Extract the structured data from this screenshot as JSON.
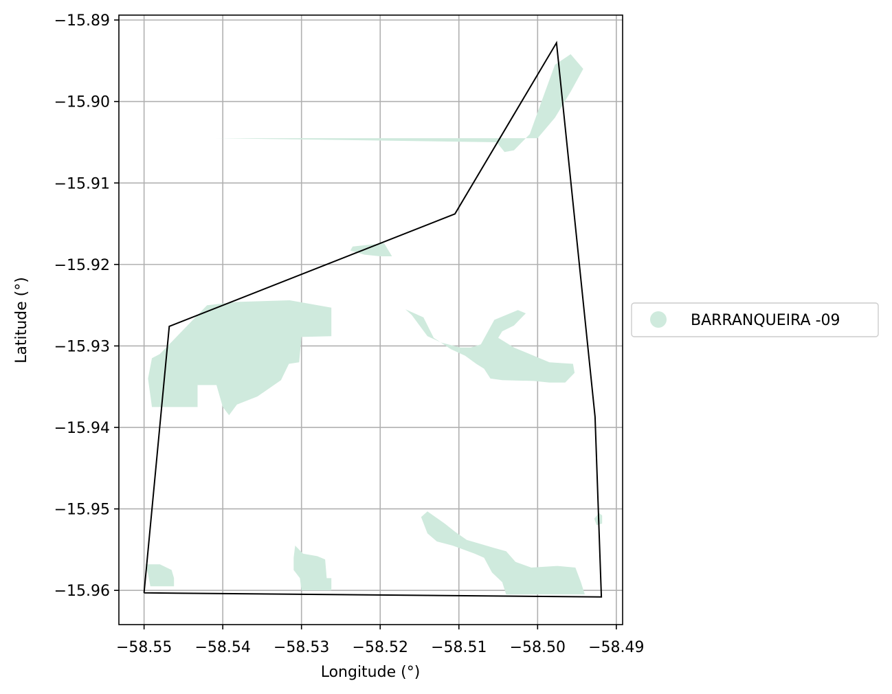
{
  "chart_data": {
    "type": "map",
    "xlabel": "Longitude (°)",
    "ylabel": "Latitude (°)",
    "xlim": [
      -58.5532,
      -58.4892
    ],
    "ylim": [
      -15.9642,
      -15.8894
    ],
    "xticks": [
      -58.55,
      -58.54,
      -58.53,
      -58.52,
      -58.51,
      -58.5,
      -58.49
    ],
    "xtick_labels": [
      "−58.55",
      "−58.54",
      "−58.53",
      "−58.52",
      "−58.51",
      "−58.50",
      "−58.49"
    ],
    "yticks": [
      -15.89,
      -15.9,
      -15.91,
      -15.92,
      -15.93,
      -15.94,
      -15.95,
      -15.96
    ],
    "ytick_labels": [
      "−15.89",
      "−15.90",
      "−15.91",
      "−15.92",
      "−15.93",
      "−15.94",
      "−15.95",
      "−15.96"
    ],
    "grid": true,
    "legend": {
      "placement": "right",
      "entries": [
        {
          "label": "BARRANQUEIRA -09",
          "color": "#cfeadd"
        }
      ]
    },
    "fill_color": "#cfeadd",
    "boundary_color": "#000000",
    "boundary": [
      [
        -58.55,
        -15.9603
      ],
      [
        -58.5468,
        -15.9276
      ],
      [
        -58.5105,
        -15.9138
      ],
      [
        -58.4976,
        -15.8928
      ],
      [
        -58.4927,
        -15.9387
      ],
      [
        -58.4919,
        -15.9608
      ],
      [
        -58.55,
        -15.9603
      ]
    ],
    "patches": [
      [
        [
          -58.548,
          -15.931
        ],
        [
          -58.542,
          -15.925
        ],
        [
          -58.5382,
          -15.9246
        ],
        [
          -58.5315,
          -15.9244
        ],
        [
          -58.5262,
          -15.9253
        ],
        [
          -58.5262,
          -15.9288
        ],
        [
          -58.53,
          -15.9289
        ],
        [
          -58.5303,
          -15.932
        ],
        [
          -58.5316,
          -15.9322
        ],
        [
          -58.5326,
          -15.9342
        ],
        [
          -58.5356,
          -15.9362
        ],
        [
          -58.5382,
          -15.9372
        ],
        [
          -58.5392,
          -15.9385
        ],
        [
          -58.54,
          -15.9375
        ],
        [
          -58.5408,
          -15.9348
        ],
        [
          -58.5432,
          -15.9348
        ],
        [
          -58.5432,
          -15.9375
        ],
        [
          -58.549,
          -15.9375
        ],
        [
          -58.5495,
          -15.934
        ],
        [
          -58.549,
          -15.9315
        ]
      ],
      [
        [
          -58.541,
          -15.9045
        ],
        [
          -58.5,
          -15.9045
        ],
        [
          -58.4978,
          -15.902
        ],
        [
          -58.4958,
          -15.8988
        ],
        [
          -58.4942,
          -15.896
        ],
        [
          -58.4958,
          -15.8942
        ],
        [
          -58.4978,
          -15.8955
        ],
        [
          -58.4995,
          -15.9
        ],
        [
          -58.501,
          -15.904
        ],
        [
          -58.503,
          -15.906
        ],
        [
          -58.5042,
          -15.9062
        ],
        [
          -58.5052,
          -15.905
        ]
      ],
      [
        [
          -58.5235,
          -15.9178
        ],
        [
          -58.5195,
          -15.9174
        ],
        [
          -58.519,
          -15.9182
        ],
        [
          -58.5185,
          -15.919
        ],
        [
          -58.52,
          -15.919
        ],
        [
          -58.522,
          -15.9188
        ],
        [
          -58.5238,
          -15.9183
        ]
      ],
      [
        [
          -58.5168,
          -15.9255
        ],
        [
          -58.5145,
          -15.9265
        ],
        [
          -58.5132,
          -15.929
        ],
        [
          -58.511,
          -15.9304
        ],
        [
          -58.5092,
          -15.9312
        ],
        [
          -58.5078,
          -15.9322
        ],
        [
          -58.5068,
          -15.9328
        ],
        [
          -58.506,
          -15.934
        ],
        [
          -58.5045,
          -15.9342
        ],
        [
          -58.5005,
          -15.9343
        ],
        [
          -58.4985,
          -15.9345
        ],
        [
          -58.4965,
          -15.9345
        ],
        [
          -58.4953,
          -15.9333
        ],
        [
          -58.4955,
          -15.9322
        ],
        [
          -58.4985,
          -15.932
        ],
        [
          -58.5015,
          -15.9308
        ],
        [
          -58.503,
          -15.9302
        ],
        [
          -58.505,
          -15.929
        ],
        [
          -58.5045,
          -15.9282
        ],
        [
          -58.503,
          -15.9275
        ],
        [
          -58.5015,
          -15.926
        ],
        [
          -58.5025,
          -15.9256
        ],
        [
          -58.504,
          -15.9262
        ],
        [
          -58.5055,
          -15.9268
        ],
        [
          -58.5072,
          -15.9298
        ],
        [
          -58.5085,
          -15.9302
        ],
        [
          -58.5098,
          -15.9302
        ],
        [
          -58.5122,
          -15.9296
        ],
        [
          -58.514,
          -15.9288
        ],
        [
          -58.515,
          -15.9275
        ],
        [
          -58.516,
          -15.9262
        ]
      ],
      [
        [
          -58.514,
          -15.9503
        ],
        [
          -58.5118,
          -15.9518
        ],
        [
          -58.5105,
          -15.9528
        ],
        [
          -58.509,
          -15.9538
        ],
        [
          -58.5055,
          -15.9548
        ],
        [
          -58.504,
          -15.9552
        ],
        [
          -58.5028,
          -15.9565
        ],
        [
          -58.5008,
          -15.9572
        ],
        [
          -58.4975,
          -15.957
        ],
        [
          -58.4952,
          -15.9572
        ],
        [
          -58.4945,
          -15.959
        ],
        [
          -58.494,
          -15.9605
        ],
        [
          -58.504,
          -15.9605
        ],
        [
          -58.5045,
          -15.959
        ],
        [
          -58.5058,
          -15.9578
        ],
        [
          -58.5068,
          -15.956
        ],
        [
          -58.508,
          -15.9555
        ],
        [
          -58.5108,
          -15.9545
        ],
        [
          -58.5128,
          -15.954
        ],
        [
          -58.514,
          -15.953
        ],
        [
          -58.5148,
          -15.951
        ]
      ],
      [
        [
          -58.5308,
          -15.9545
        ],
        [
          -58.5298,
          -15.9555
        ],
        [
          -58.528,
          -15.9558
        ],
        [
          -58.527,
          -15.9562
        ],
        [
          -58.5268,
          -15.9585
        ],
        [
          -58.5262,
          -15.9585
        ],
        [
          -58.5262,
          -15.96
        ],
        [
          -58.53,
          -15.96
        ],
        [
          -58.5302,
          -15.9585
        ],
        [
          -58.531,
          -15.9575
        ],
        [
          -58.531,
          -15.956
        ]
      ],
      [
        [
          -58.5498,
          -15.9568
        ],
        [
          -58.548,
          -15.9568
        ],
        [
          -58.5465,
          -15.9575
        ],
        [
          -58.5462,
          -15.9585
        ],
        [
          -58.5462,
          -15.9595
        ],
        [
          -58.5492,
          -15.9595
        ],
        [
          -58.5495,
          -15.958
        ]
      ],
      [
        [
          -58.4922,
          -15.9505
        ],
        [
          -58.4928,
          -15.9512
        ],
        [
          -58.4925,
          -15.952
        ],
        [
          -58.4918,
          -15.9518
        ],
        [
          -58.4918,
          -15.9508
        ]
      ]
    ]
  }
}
